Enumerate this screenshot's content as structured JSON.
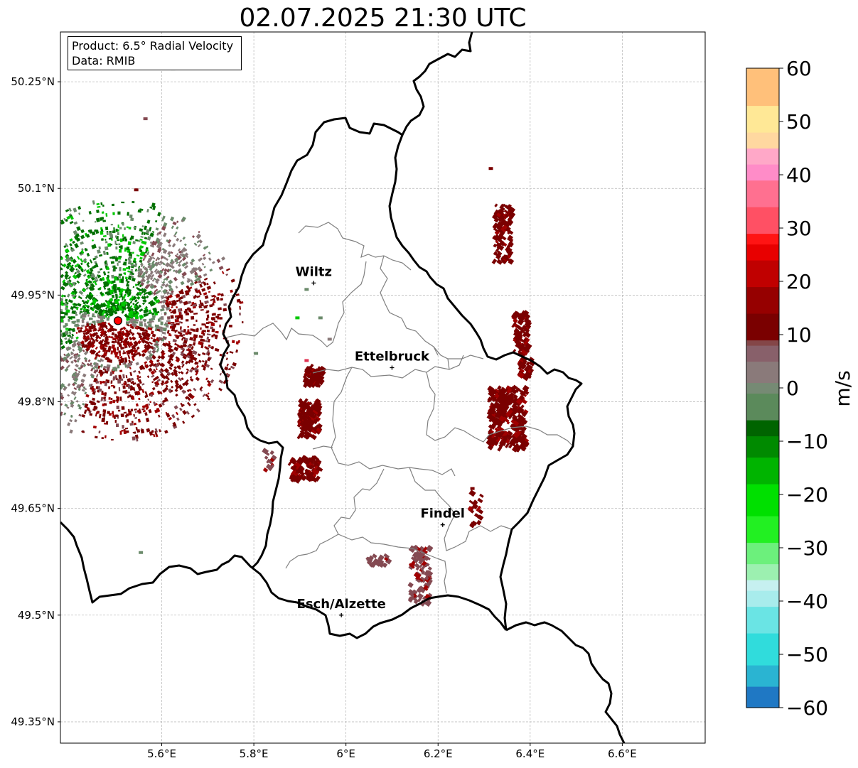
{
  "title": "02.07.2025 21:30 UTC",
  "info": {
    "product": "Product: 6.5° Radial Velocity",
    "source": "Data: RMIB"
  },
  "axes": {
    "lon_min": 5.38,
    "lon_max": 6.78,
    "lat_min": 49.32,
    "lat_max": 50.32,
    "x_ticks": [
      {
        "value": 5.6,
        "label": "5.6°E"
      },
      {
        "value": 5.8,
        "label": "5.8°E"
      },
      {
        "value": 6.0,
        "label": "6°E"
      },
      {
        "value": 6.2,
        "label": "6.2°E"
      },
      {
        "value": 6.4,
        "label": "6.4°E"
      },
      {
        "value": 6.6,
        "label": "6.6°E"
      }
    ],
    "y_ticks": [
      {
        "value": 50.25,
        "label": "50.25°N"
      },
      {
        "value": 50.1,
        "label": "50.1°N"
      },
      {
        "value": 49.95,
        "label": "49.95°N"
      },
      {
        "value": 49.8,
        "label": "49.8°N"
      },
      {
        "value": 49.65,
        "label": "49.65°N"
      },
      {
        "value": 49.5,
        "label": "49.5°N"
      },
      {
        "value": 49.35,
        "label": "49.35°N"
      }
    ],
    "gridlines": true
  },
  "places": [
    {
      "name": "Wiltz",
      "lon": 5.93,
      "lat": 49.967
    },
    {
      "name": "Ettelbruck",
      "lon": 6.1,
      "lat": 49.848
    },
    {
      "name": "Findel",
      "lon": 6.21,
      "lat": 49.627
    },
    {
      "name": "Esch/Alzette",
      "lon": 5.99,
      "lat": 49.5
    }
  ],
  "radar_site": {
    "lon": 5.505,
    "lat": 49.914
  },
  "colorbar": {
    "label": "m/s",
    "min": -60,
    "max": 60,
    "ticks": [
      {
        "value": 60,
        "label": "60"
      },
      {
        "value": 50,
        "label": "50"
      },
      {
        "value": 40,
        "label": "40"
      },
      {
        "value": 30,
        "label": "30"
      },
      {
        "value": 20,
        "label": "20"
      },
      {
        "value": 10,
        "label": "10"
      },
      {
        "value": 0,
        "label": "0"
      },
      {
        "value": -10,
        "label": "−10"
      },
      {
        "value": -20,
        "label": "−20"
      },
      {
        "value": -30,
        "label": "−30"
      },
      {
        "value": -40,
        "label": "−40"
      },
      {
        "value": -50,
        "label": "−50"
      },
      {
        "value": -60,
        "label": "−60"
      }
    ],
    "stops": [
      {
        "v": -60,
        "color": "#1f78c4"
      },
      {
        "v": -56,
        "color": "#2ab4d2"
      },
      {
        "v": -52,
        "color": "#30dcdc"
      },
      {
        "v": -46,
        "color": "#6ae4e4"
      },
      {
        "v": -41,
        "color": "#a8ecec"
      },
      {
        "v": -38,
        "color": "#c6f0f0"
      },
      {
        "v": -36,
        "color": "#9cf0b0"
      },
      {
        "v": -33,
        "color": "#6cf07c"
      },
      {
        "v": -29,
        "color": "#22f022"
      },
      {
        "v": -24,
        "color": "#00e000"
      },
      {
        "v": -18,
        "color": "#00b400"
      },
      {
        "v": -13,
        "color": "#008a00"
      },
      {
        "v": -9,
        "color": "#006400"
      },
      {
        "v": -6,
        "color": "#5b8a5b"
      },
      {
        "v": -1,
        "color": "#768a74"
      },
      {
        "v": 1,
        "color": "#8a7a7a"
      },
      {
        "v": 5,
        "color": "#88606a"
      },
      {
        "v": 8,
        "color": "#844648"
      },
      {
        "v": 9,
        "color": "#7a0000"
      },
      {
        "v": 14,
        "color": "#960000"
      },
      {
        "v": 19,
        "color": "#c00000"
      },
      {
        "v": 24,
        "color": "#e80000"
      },
      {
        "v": 27,
        "color": "#ff1414"
      },
      {
        "v": 29,
        "color": "#ff5064"
      },
      {
        "v": 34,
        "color": "#ff7090"
      },
      {
        "v": 39,
        "color": "#ff8cc8"
      },
      {
        "v": 42,
        "color": "#ffa8c8"
      },
      {
        "v": 45,
        "color": "#ffd8a0"
      },
      {
        "v": 48,
        "color": "#ffe896"
      },
      {
        "v": 53,
        "color": "#ffc07a"
      },
      {
        "v": 60,
        "color": "#ff9a56"
      }
    ]
  },
  "echo_colors": {
    "outbound_strong": "#7a0000",
    "outbound_mid": "#a00000",
    "near_zero_pos": "#844a52",
    "near_zero": "#8a7a7a",
    "near_zero_neg": "#6a8a6a",
    "inbound_strong": "#007000",
    "inbound_bright": "#00c800"
  }
}
